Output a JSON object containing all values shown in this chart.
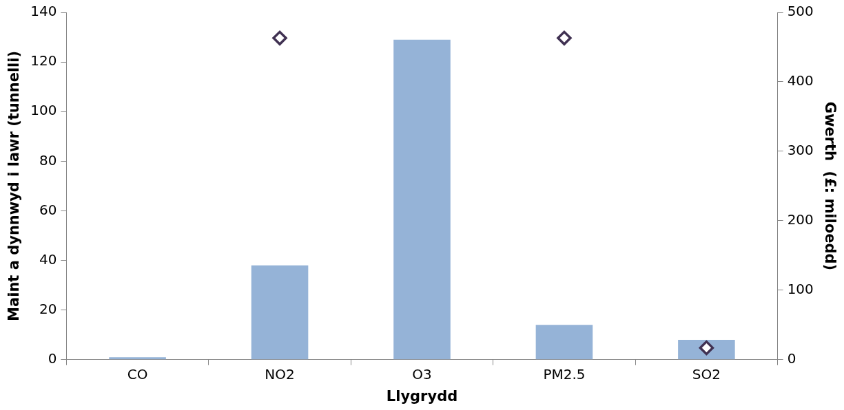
{
  "chart_data": {
    "type": "bar",
    "xlabel": "Llygrydd",
    "ylabel": "Maint a dynnwyd i lawr (tunnelli)",
    "y2label": "Gwerth  (£: miloedd)",
    "categories": [
      "CO",
      "NO2",
      "O3",
      "PM2.5",
      "SO2"
    ],
    "series": [
      {
        "color": "#95b3d7",
        "values": [
          1,
          38,
          129,
          14,
          8
        ]
      },
      {
        "type": "scatter",
        "axis": "y2",
        "color": "#403152",
        "values": [
          null,
          463,
          null,
          463,
          17
        ]
      }
    ],
    "marker": "diamond",
    "ylim": [
      0,
      140
    ],
    "yticks": [
      0,
      20,
      40,
      60,
      80,
      100,
      120,
      140
    ],
    "y2lim": [
      0,
      500
    ],
    "y2ticks": [
      0,
      100,
      200,
      300,
      400,
      500
    ],
    "grid": false,
    "legend": false
  }
}
